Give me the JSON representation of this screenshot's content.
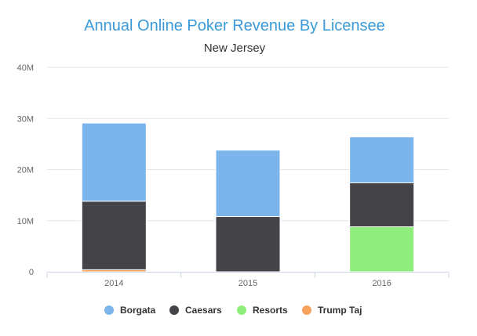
{
  "chart_data": {
    "type": "bar",
    "stacked": true,
    "title": "Annual Online Poker Revenue By Licensee",
    "subtitle": "New Jersey",
    "categories": [
      "2014",
      "2015",
      "2016"
    ],
    "y_ticks": [
      "0",
      "10M",
      "20M",
      "30M",
      "40M"
    ],
    "ylim": [
      0,
      40000000
    ],
    "grid": true,
    "legend_position": "bottom",
    "series": [
      {
        "name": "Trump Taj",
        "color": "#f7a35c",
        "values": [
          400000,
          0,
          0
        ]
      },
      {
        "name": "Resorts",
        "color": "#90ed7d",
        "values": [
          0,
          0,
          8800000
        ]
      },
      {
        "name": "Caesars",
        "color": "#434348",
        "values": [
          13400000,
          10800000,
          8600000
        ]
      },
      {
        "name": "Borgata",
        "color": "#7cb5ec",
        "values": [
          15300000,
          13000000,
          9000000
        ]
      }
    ],
    "legend_order": [
      "Borgata",
      "Caesars",
      "Resorts",
      "Trump Taj"
    ]
  }
}
